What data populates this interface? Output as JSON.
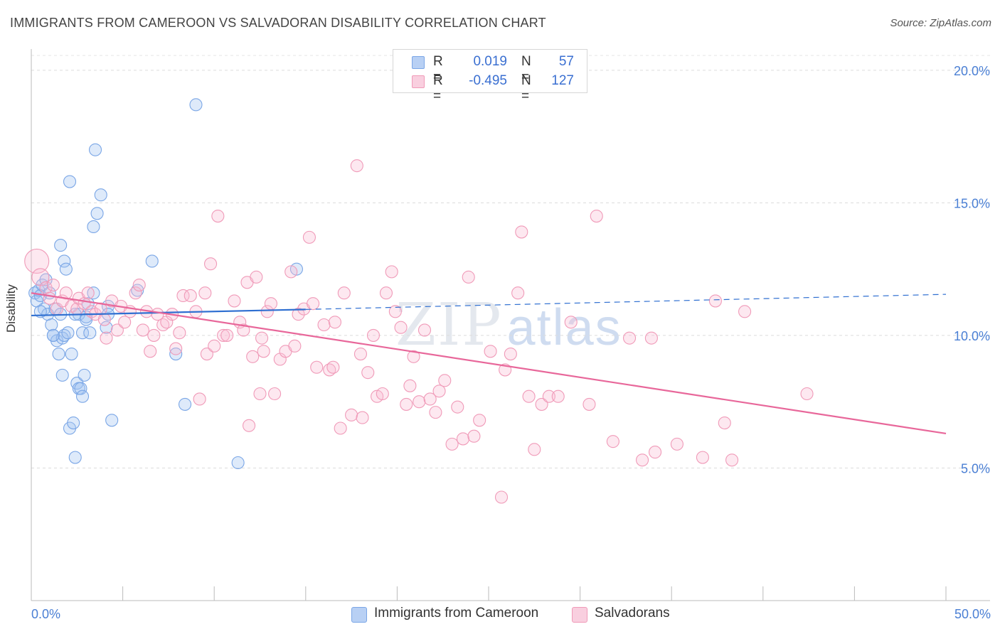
{
  "title": "IMMIGRANTS FROM CAMEROON VS SALVADORAN DISABILITY CORRELATION CHART",
  "source": "Source: ZipAtlas.com",
  "watermark": {
    "zip": "ZIP",
    "atlas": "atlas"
  },
  "legend": {
    "rows": [
      {
        "r_label": "R =",
        "r_value": "0.019",
        "n_label": "N =",
        "n_value": "57",
        "color": "#7aa6e6"
      },
      {
        "r_label": "R =",
        "r_value": "-0.495",
        "n_label": "N =",
        "n_value": "127",
        "color": "#f09ab8"
      }
    ]
  },
  "bottom_legend": [
    {
      "label": "Immigrants from Cameroon",
      "color": "#b8d0f4",
      "border": "#7aa6e6"
    },
    {
      "label": "Salvadorans",
      "color": "#f9cfdf",
      "border": "#f09ab8"
    }
  ],
  "chart_data": {
    "type": "scatter",
    "title": "IMMIGRANTS FROM CAMEROON VS SALVADORAN DISABILITY CORRELATION CHART",
    "xlabel": "",
    "ylabel": "Disability",
    "xlim": [
      0,
      50
    ],
    "ylim": [
      0,
      20.8
    ],
    "x_tick_labels": [
      "0.0%",
      "50.0%"
    ],
    "y_ticks": [
      5,
      10,
      15,
      20
    ],
    "y_tick_labels": [
      "5.0%",
      "10.0%",
      "15.0%",
      "20.0%"
    ],
    "grid": "horizontal dashed",
    "legend_position": "top-center",
    "series": [
      {
        "name": "Immigrants from Cameroon",
        "color": "#7aa6e6",
        "fill": "rgba(160,195,240,0.35)",
        "trend": {
          "x0": 0,
          "y0": 10.75,
          "x1": 15,
          "y1": 10.98,
          "dashed_to_x": 50,
          "dashed_y": 11.55,
          "color": "#2f6fd1"
        },
        "points": [
          [
            0.2,
            11.6
          ],
          [
            0.3,
            11.3
          ],
          [
            0.4,
            11.7
          ],
          [
            0.5,
            11.5
          ],
          [
            0.6,
            11.9
          ],
          [
            0.7,
            11.0
          ],
          [
            0.8,
            12.1
          ],
          [
            0.9,
            10.8
          ],
          [
            1.0,
            11.6
          ],
          [
            1.1,
            10.4
          ],
          [
            1.2,
            10.0
          ],
          [
            1.3,
            11.0
          ],
          [
            1.4,
            9.8
          ],
          [
            1.5,
            9.3
          ],
          [
            1.6,
            10.8
          ],
          [
            1.7,
            9.9
          ],
          [
            1.8,
            12.8
          ],
          [
            1.6,
            13.4
          ],
          [
            1.8,
            10.0
          ],
          [
            1.7,
            8.5
          ],
          [
            1.9,
            12.5
          ],
          [
            2.1,
            15.8
          ],
          [
            2.2,
            9.3
          ],
          [
            2.1,
            6.5
          ],
          [
            2.3,
            6.7
          ],
          [
            2.4,
            5.4
          ],
          [
            2.5,
            8.2
          ],
          [
            2.6,
            8.0
          ],
          [
            2.6,
            10.8
          ],
          [
            2.7,
            8.0
          ],
          [
            2.8,
            7.7
          ],
          [
            2.8,
            10.1
          ],
          [
            2.9,
            8.5
          ],
          [
            3.0,
            10.7
          ],
          [
            3.1,
            11.2
          ],
          [
            3.2,
            10.1
          ],
          [
            3.4,
            11.6
          ],
          [
            3.5,
            17.0
          ],
          [
            3.6,
            14.6
          ],
          [
            3.8,
            15.3
          ],
          [
            3.4,
            14.1
          ],
          [
            4.1,
            10.3
          ],
          [
            4.2,
            11.1
          ],
          [
            4.2,
            10.8
          ],
          [
            4.4,
            6.8
          ],
          [
            5.8,
            11.7
          ],
          [
            6.6,
            12.8
          ],
          [
            7.9,
            9.3
          ],
          [
            8.4,
            7.4
          ],
          [
            9.0,
            18.7
          ],
          [
            11.3,
            5.2
          ],
          [
            14.5,
            12.5
          ],
          [
            0.5,
            10.9
          ],
          [
            1.2,
            10.0
          ],
          [
            2.0,
            10.1
          ],
          [
            2.4,
            10.8
          ],
          [
            3.0,
            10.6
          ]
        ]
      },
      {
        "name": "Salvadorans",
        "color": "#f09ab8",
        "fill": "rgba(248,190,212,0.35)",
        "trend": {
          "x0": 0,
          "y0": 11.6,
          "x1": 50,
          "y1": 6.3,
          "color": "#e8679a"
        },
        "points": [
          [
            0.3,
            12.8
          ],
          [
            0.5,
            12.2
          ],
          [
            0.8,
            11.8
          ],
          [
            1.0,
            11.4
          ],
          [
            1.2,
            11.9
          ],
          [
            1.4,
            11.0
          ],
          [
            1.7,
            11.3
          ],
          [
            1.9,
            11.6
          ],
          [
            2.2,
            11.1
          ],
          [
            2.5,
            11.0
          ],
          [
            2.6,
            11.4
          ],
          [
            2.9,
            11.2
          ],
          [
            3.1,
            11.6
          ],
          [
            3.3,
            10.9
          ],
          [
            3.5,
            10.8
          ],
          [
            3.8,
            11.0
          ],
          [
            4.0,
            10.6
          ],
          [
            4.1,
            9.9
          ],
          [
            4.4,
            11.3
          ],
          [
            4.7,
            10.2
          ],
          [
            4.9,
            11.1
          ],
          [
            5.1,
            10.5
          ],
          [
            5.4,
            10.9
          ],
          [
            5.7,
            11.6
          ],
          [
            5.9,
            11.9
          ],
          [
            6.1,
            10.2
          ],
          [
            6.3,
            10.9
          ],
          [
            6.5,
            9.4
          ],
          [
            6.7,
            10.0
          ],
          [
            6.9,
            10.8
          ],
          [
            7.2,
            10.4
          ],
          [
            7.4,
            10.5
          ],
          [
            7.7,
            10.8
          ],
          [
            7.9,
            9.5
          ],
          [
            8.1,
            10.1
          ],
          [
            8.3,
            11.5
          ],
          [
            8.7,
            11.5
          ],
          [
            9.0,
            10.9
          ],
          [
            9.2,
            7.6
          ],
          [
            9.5,
            11.6
          ],
          [
            9.6,
            9.3
          ],
          [
            9.8,
            12.7
          ],
          [
            10.0,
            9.6
          ],
          [
            10.2,
            14.5
          ],
          [
            10.5,
            10.0
          ],
          [
            10.7,
            10.0
          ],
          [
            11.1,
            11.3
          ],
          [
            11.4,
            10.5
          ],
          [
            11.6,
            10.2
          ],
          [
            11.8,
            12.0
          ],
          [
            12.1,
            9.2
          ],
          [
            12.3,
            12.2
          ],
          [
            12.5,
            7.8
          ],
          [
            12.7,
            9.4
          ],
          [
            12.9,
            10.9
          ],
          [
            13.1,
            11.2
          ],
          [
            13.3,
            7.8
          ],
          [
            13.6,
            9.1
          ],
          [
            13.9,
            9.4
          ],
          [
            14.2,
            12.4
          ],
          [
            14.4,
            9.6
          ],
          [
            14.6,
            10.8
          ],
          [
            14.9,
            11.0
          ],
          [
            15.2,
            13.7
          ],
          [
            15.6,
            8.8
          ],
          [
            16.0,
            10.4
          ],
          [
            16.3,
            8.7
          ],
          [
            16.6,
            10.5
          ],
          [
            16.9,
            6.5
          ],
          [
            17.1,
            11.6
          ],
          [
            17.5,
            7.0
          ],
          [
            17.8,
            16.4
          ],
          [
            18.1,
            6.9
          ],
          [
            18.4,
            8.6
          ],
          [
            18.7,
            10.0
          ],
          [
            18.9,
            7.7
          ],
          [
            19.2,
            7.8
          ],
          [
            19.4,
            11.6
          ],
          [
            19.7,
            12.4
          ],
          [
            19.9,
            10.9
          ],
          [
            20.2,
            10.3
          ],
          [
            20.5,
            7.4
          ],
          [
            20.7,
            8.1
          ],
          [
            20.9,
            9.2
          ],
          [
            21.2,
            7.5
          ],
          [
            21.5,
            10.2
          ],
          [
            21.8,
            7.6
          ],
          [
            22.1,
            7.1
          ],
          [
            22.3,
            7.9
          ],
          [
            22.6,
            8.3
          ],
          [
            23.0,
            5.9
          ],
          [
            23.3,
            7.3
          ],
          [
            23.6,
            6.1
          ],
          [
            23.9,
            12.2
          ],
          [
            24.2,
            6.2
          ],
          [
            24.5,
            6.8
          ],
          [
            25.1,
            9.4
          ],
          [
            25.7,
            3.9
          ],
          [
            25.9,
            8.7
          ],
          [
            26.2,
            9.3
          ],
          [
            26.6,
            11.6
          ],
          [
            26.8,
            13.9
          ],
          [
            27.2,
            7.7
          ],
          [
            27.5,
            5.7
          ],
          [
            27.9,
            7.4
          ],
          [
            28.3,
            7.7
          ],
          [
            28.8,
            7.7
          ],
          [
            29.5,
            10.5
          ],
          [
            30.5,
            7.4
          ],
          [
            30.9,
            14.5
          ],
          [
            31.8,
            6.0
          ],
          [
            32.7,
            9.9
          ],
          [
            33.4,
            5.3
          ],
          [
            33.9,
            9.9
          ],
          [
            34.1,
            5.6
          ],
          [
            35.3,
            5.9
          ],
          [
            36.7,
            5.4
          ],
          [
            37.4,
            11.3
          ],
          [
            37.9,
            6.7
          ],
          [
            38.3,
            5.3
          ],
          [
            39.0,
            10.9
          ],
          [
            42.4,
            7.8
          ],
          [
            11.9,
            6.6
          ],
          [
            12.6,
            9.9
          ],
          [
            15.4,
            11.2
          ],
          [
            16.5,
            8.8
          ],
          [
            18.0,
            9.3
          ]
        ]
      }
    ]
  }
}
